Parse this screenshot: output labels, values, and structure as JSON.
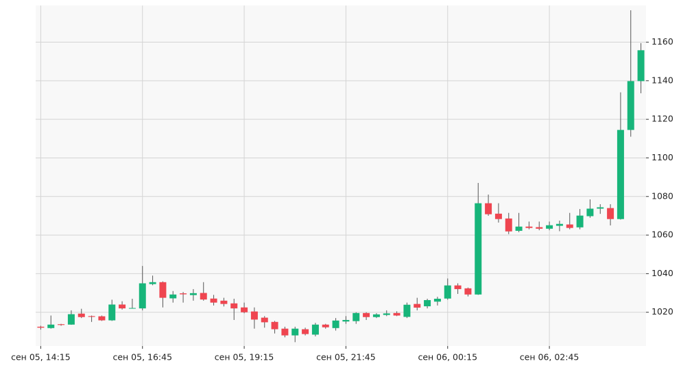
{
  "chart_data": {
    "type": "candlestick",
    "categories": [
      "сен 05, 14:15",
      null,
      null,
      null,
      null,
      null,
      null,
      null,
      null,
      null,
      "сен 05, 16:45",
      null,
      null,
      null,
      null,
      null,
      null,
      null,
      null,
      null,
      "сен 05, 19:15",
      null,
      null,
      null,
      null,
      null,
      null,
      null,
      null,
      null,
      "сен 05, 21:45",
      null,
      null,
      null,
      null,
      null,
      null,
      null,
      null,
      null,
      "сен 06, 00:15",
      null,
      null,
      null,
      null,
      null,
      null,
      null,
      null,
      null,
      "сен 06, 02:45",
      null,
      null,
      null,
      null,
      null,
      null,
      null,
      null,
      null
    ],
    "open": [
      1012.5,
      1011.8,
      1013.8,
      1013.6,
      1019.3,
      1018,
      1017.9,
      1015.8,
      1024,
      1022,
      1022,
      1034.6,
      1035.6,
      1027.2,
      1029.8,
      1028.9,
      1030,
      1027.1,
      1026,
      1024.6,
      1022.5,
      1020.4,
      1017.2,
      1015,
      1011.5,
      1008,
      1011.2,
      1008.4,
      1013.6,
      1011.8,
      1015.2,
      1015.4,
      1019.6,
      1017.5,
      1018.6,
      1019.6,
      1017.6,
      1024.3,
      1023.1,
      1025.5,
      1027.1,
      1033.9,
      1032.4,
      1029.2,
      1076.5,
      1071.1,
      1068.6,
      1062.2,
      1064.4,
      1064.1,
      1063.3,
      1064.8,
      1065.5,
      1064,
      1069.8,
      1073.7,
      1074,
      1068.3,
      1114.5,
      1139.8
    ],
    "high": [
      1013,
      1018.3,
      1014,
      1021,
      1021.8,
      1018.3,
      1018.3,
      1026.5,
      1025.7,
      1027,
      1044,
      1039,
      1036,
      1031,
      1030.5,
      1032,
      1035.6,
      1029,
      1027.5,
      1027,
      1025,
      1022.5,
      1018,
      1015.5,
      1012.5,
      1012.5,
      1012,
      1014.5,
      1014,
      1017,
      1018,
      1020,
      1020,
      1019.5,
      1021,
      1020.5,
      1025,
      1027.5,
      1027,
      1028,
      1037.5,
      1035,
      1032.8,
      1087,
      1081,
      1076.5,
      1071.5,
      1071.5,
      1067,
      1067,
      1067,
      1067.5,
      1071.5,
      1073.5,
      1078.5,
      1076,
      1076,
      1134,
      1176.5,
      1159.5
    ],
    "low": [
      1011,
      1011.5,
      1013,
      1013.5,
      1017,
      1015,
      1015.5,
      1015.5,
      1021.4,
      1022,
      1021,
      1034,
      1022.5,
      1025,
      1025,
      1026,
      1026,
      1023.5,
      1023,
      1016,
      1019.5,
      1011.5,
      1012,
      1009,
      1007,
      1004.5,
      1008,
      1007.5,
      1011.5,
      1010.5,
      1014,
      1014,
      1016,
      1017,
      1018,
      1018,
      1017,
      1021,
      1022,
      1023.5,
      1026.5,
      1029.5,
      1028.2,
      1029,
      1070,
      1066.5,
      1060.5,
      1061.5,
      1063,
      1062.5,
      1062.5,
      1062,
      1063,
      1063,
      1069,
      1071,
      1065,
      1068,
      1111,
      1133.5
    ],
    "close": [
      1012,
      1013.6,
      1013.4,
      1019,
      1017.5,
      1017.6,
      1015.8,
      1024,
      1022,
      1022.2,
      1035,
      1035.6,
      1027.5,
      1029.2,
      1029.3,
      1029.9,
      1026.6,
      1025,
      1024.3,
      1022,
      1020,
      1016.2,
      1014.8,
      1011.2,
      1008,
      1011.5,
      1008.7,
      1013.6,
      1012.2,
      1015.7,
      1016,
      1019.6,
      1017.5,
      1018.9,
      1019.4,
      1018.3,
      1023.9,
      1022.4,
      1026.3,
      1027,
      1033.9,
      1032,
      1029.2,
      1076.5,
      1070.8,
      1068.3,
      1061.9,
      1064.4,
      1063.7,
      1063.3,
      1065.1,
      1065.8,
      1063.7,
      1070.1,
      1073.7,
      1074.4,
      1068.3,
      1114.5,
      1139.8,
      1155.8
    ],
    "up_color": "#17b57a",
    "down_color": "#ef4550",
    "wick_color": "#555555",
    "ylim": [
      1002.5,
      1179
    ],
    "yticks": [
      1020,
      1040,
      1060,
      1080,
      1100,
      1120,
      1140,
      1160
    ],
    "grid": true
  }
}
